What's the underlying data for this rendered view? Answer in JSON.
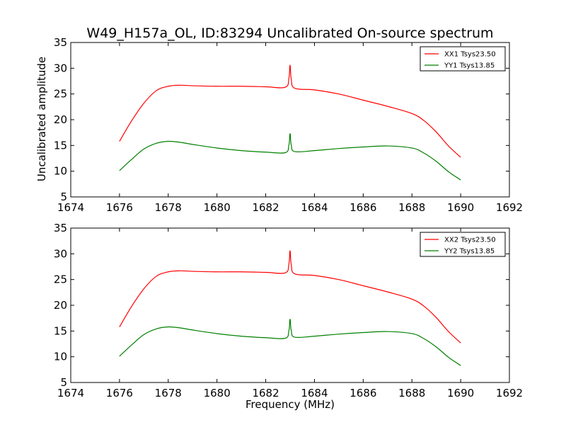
{
  "figure": {
    "title": "W49_H157a_OL, ID:83294 Uncalibrated On-source spectrum",
    "xlabel": "Frequency (MHz)",
    "ylabel": "Uncalibrated amplitude"
  },
  "colors": {
    "red": "#ff0000",
    "green": "#008000"
  },
  "chart_data": [
    {
      "type": "line",
      "xlabel": "",
      "ylabel": "Uncalibrated amplitude",
      "xlim": [
        1674,
        1692
      ],
      "ylim": [
        5,
        35
      ],
      "xticks": [
        1674,
        1676,
        1678,
        1680,
        1682,
        1684,
        1686,
        1688,
        1690,
        1692
      ],
      "yticks": [
        5,
        10,
        15,
        20,
        25,
        30,
        35
      ],
      "legend": "top-right",
      "series": [
        {
          "name": "XX1 Tsys23.50",
          "color": "#ff0000",
          "x": [
            1676.0,
            1676.5,
            1677.0,
            1677.5,
            1678.0,
            1678.5,
            1679.0,
            1680.0,
            1681.0,
            1682.0,
            1682.8,
            1682.95,
            1683.0,
            1683.05,
            1683.2,
            1684.0,
            1685.0,
            1686.0,
            1687.0,
            1688.0,
            1688.5,
            1689.0,
            1689.5,
            1690.0
          ],
          "y": [
            15.8,
            19.8,
            23.2,
            25.6,
            26.5,
            26.7,
            26.6,
            26.5,
            26.5,
            26.4,
            26.3,
            28.0,
            30.6,
            27.8,
            26.1,
            25.8,
            25.0,
            23.8,
            22.6,
            21.2,
            19.8,
            17.6,
            14.9,
            12.7
          ]
        },
        {
          "name": "YY1 Tsys13.85",
          "color": "#008000",
          "x": [
            1676.0,
            1676.5,
            1677.0,
            1677.5,
            1678.0,
            1678.5,
            1679.0,
            1680.0,
            1681.0,
            1682.0,
            1682.8,
            1682.95,
            1683.0,
            1683.05,
            1683.2,
            1684.0,
            1685.0,
            1686.0,
            1687.0,
            1688.0,
            1688.5,
            1689.0,
            1689.5,
            1690.0
          ],
          "y": [
            10.1,
            12.3,
            14.3,
            15.4,
            15.8,
            15.6,
            15.2,
            14.5,
            14.0,
            13.7,
            13.6,
            15.0,
            17.3,
            15.0,
            13.8,
            14.0,
            14.4,
            14.7,
            14.9,
            14.5,
            13.5,
            11.9,
            9.9,
            8.3
          ]
        }
      ]
    },
    {
      "type": "line",
      "xlabel": "Frequency (MHz)",
      "ylabel": "",
      "xlim": [
        1674,
        1692
      ],
      "ylim": [
        5,
        35
      ],
      "xticks": [
        1674,
        1676,
        1678,
        1680,
        1682,
        1684,
        1686,
        1688,
        1690,
        1692
      ],
      "yticks": [
        5,
        10,
        15,
        20,
        25,
        30,
        35
      ],
      "legend": "top-right",
      "series": [
        {
          "name": "XX2 Tsys23.50",
          "color": "#ff0000",
          "x": [
            1676.0,
            1676.5,
            1677.0,
            1677.5,
            1678.0,
            1678.5,
            1679.0,
            1680.0,
            1681.0,
            1682.0,
            1682.8,
            1682.95,
            1683.0,
            1683.05,
            1683.2,
            1684.0,
            1685.0,
            1686.0,
            1687.0,
            1688.0,
            1688.5,
            1689.0,
            1689.5,
            1690.0
          ],
          "y": [
            15.8,
            19.8,
            23.2,
            25.6,
            26.5,
            26.7,
            26.6,
            26.5,
            26.5,
            26.4,
            26.3,
            28.0,
            30.6,
            27.8,
            26.1,
            25.8,
            25.0,
            23.8,
            22.6,
            21.2,
            19.8,
            17.6,
            14.9,
            12.7
          ]
        },
        {
          "name": "YY2 Tsys13.85",
          "color": "#008000",
          "x": [
            1676.0,
            1676.5,
            1677.0,
            1677.5,
            1678.0,
            1678.5,
            1679.0,
            1680.0,
            1681.0,
            1682.0,
            1682.8,
            1682.95,
            1683.0,
            1683.05,
            1683.2,
            1684.0,
            1685.0,
            1686.0,
            1687.0,
            1688.0,
            1688.5,
            1689.0,
            1689.5,
            1690.0
          ],
          "y": [
            10.1,
            12.3,
            14.3,
            15.4,
            15.8,
            15.6,
            15.2,
            14.5,
            14.0,
            13.7,
            13.6,
            15.0,
            17.3,
            15.0,
            13.8,
            14.0,
            14.4,
            14.7,
            14.9,
            14.5,
            13.5,
            11.9,
            9.9,
            8.3
          ]
        }
      ]
    }
  ]
}
